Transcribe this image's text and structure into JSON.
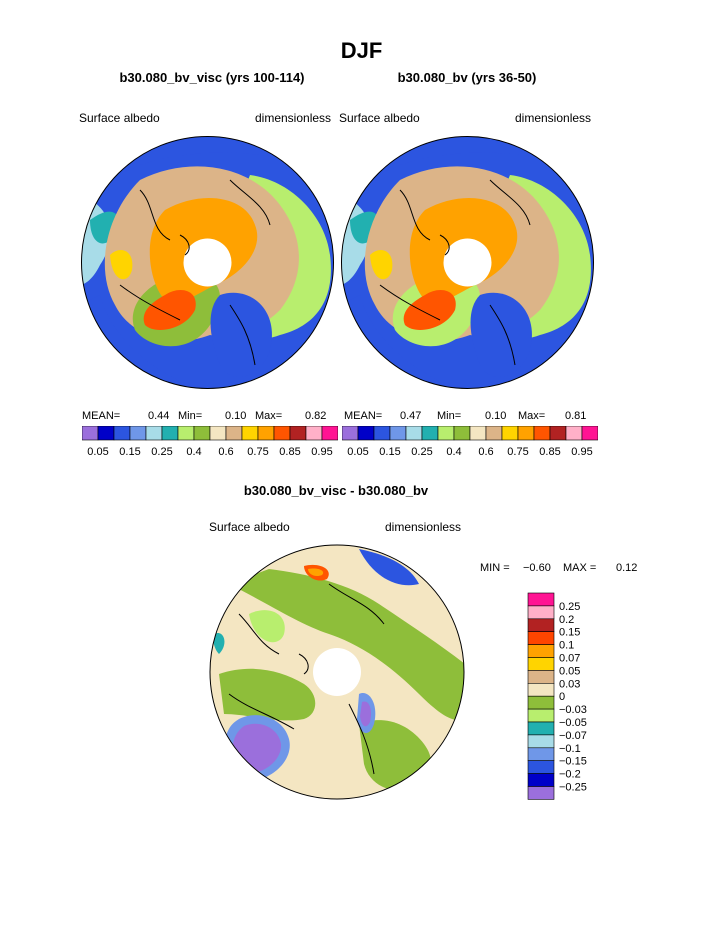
{
  "figure": {
    "season_title": "DJF",
    "panel_a": {
      "case_title": "b30.080_bv_visc (yrs 100-114)",
      "left_label": "Surface albedo",
      "right_label": "dimensionless",
      "mean_label": "MEAN=",
      "mean_value": "0.44",
      "min_label": "Min=",
      "min_value": "0.10",
      "max_label": "Max=",
      "max_value": "0.82"
    },
    "panel_b": {
      "case_title": "b30.080_bv (yrs 36-50)",
      "left_label": "Surface albedo",
      "right_label": "dimensionless",
      "mean_label": "MEAN=",
      "mean_value": "0.47",
      "min_label": "Min=",
      "min_value": "0.10",
      "max_label": "Max=",
      "max_value": "0.81"
    },
    "diff": {
      "title": "b30.080_bv_visc - b30.080_bv",
      "left_label": "Surface albedo",
      "right_label": "dimensionless",
      "min_label": "MIN =",
      "min_value": "−0.60",
      "max_label": "MAX =",
      "max_value": "0.12"
    }
  },
  "chart_data": [
    {
      "type": "heatmap",
      "projection": "north-polar-stereographic",
      "title": "b30.080_bv_visc (yrs 100-114)",
      "variable": "Surface albedo",
      "units": "dimensionless",
      "stats": {
        "mean": 0.44,
        "min": 0.1,
        "max": 0.82
      },
      "colorbar_levels": [
        0.05,
        0.1,
        0.15,
        0.2,
        0.25,
        0.3,
        0.4,
        0.5,
        0.6,
        0.7,
        0.75,
        0.8,
        0.85,
        0.9,
        0.95
      ],
      "colorbar_tick_labels": [
        "0.05",
        "0.15",
        "0.25",
        "0.4",
        "0.6",
        "0.75",
        "0.85",
        "0.95"
      ]
    },
    {
      "type": "heatmap",
      "projection": "north-polar-stereographic",
      "title": "b30.080_bv (yrs 36-50)",
      "variable": "Surface albedo",
      "units": "dimensionless",
      "stats": {
        "mean": 0.47,
        "min": 0.1,
        "max": 0.81
      },
      "colorbar_levels": [
        0.05,
        0.1,
        0.15,
        0.2,
        0.25,
        0.3,
        0.4,
        0.5,
        0.6,
        0.7,
        0.75,
        0.8,
        0.85,
        0.9,
        0.95
      ],
      "colorbar_tick_labels": [
        "0.05",
        "0.15",
        "0.25",
        "0.4",
        "0.6",
        "0.75",
        "0.85",
        "0.95"
      ]
    },
    {
      "type": "heatmap",
      "projection": "north-polar-stereographic",
      "title": "b30.080_bv_visc - b30.080_bv",
      "variable": "Surface albedo",
      "units": "dimensionless",
      "stats": {
        "min": -0.6,
        "max": 0.12
      },
      "colorbar_tick_labels": [
        "0.25",
        "0.2",
        "0.15",
        "0.1",
        "0.07",
        "0.05",
        "0.03",
        "0",
        "−0.03",
        "−0.05",
        "−0.07",
        "−0.1",
        "−0.15",
        "−0.2",
        "−0.25"
      ]
    }
  ],
  "colors": {
    "abs_palette": [
      "#9b6fdc",
      "#0000c8",
      "#2c55e0",
      "#6f97e8",
      "#a8dce8",
      "#22b0b0",
      "#b8ee6e",
      "#8ebe3a",
      "#f4e6c2",
      "#dcb488",
      "#ffd400",
      "#ffa200",
      "#ff5500",
      "#b22222",
      "#ffb0c8",
      "#ff1493"
    ],
    "diff_palette": [
      "#ff1493",
      "#ffb0c8",
      "#b22222",
      "#ff4500",
      "#ffa200",
      "#ffd400",
      "#dcb488",
      "#f4e6c2",
      "#8ebe3a",
      "#b8ee6e",
      "#22b0b0",
      "#a8dce8",
      "#6f97e8",
      "#2c55e0",
      "#0000c8",
      "#9b6fdc"
    ],
    "ocean": "#2c55e0",
    "land_outline": "#000000"
  }
}
